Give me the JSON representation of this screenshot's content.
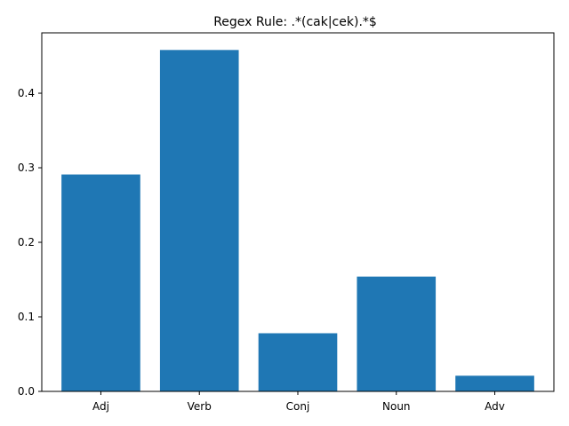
{
  "chart_data": {
    "type": "bar",
    "title": "Regex Rule: .*(cak|cek).*$",
    "xlabel": "",
    "ylabel": "",
    "categories": [
      "Adj",
      "Verb",
      "Conj",
      "Noun",
      "Adv"
    ],
    "values": [
      0.291,
      0.458,
      0.078,
      0.154,
      0.021
    ],
    "ylim": [
      0,
      0.481
    ],
    "yticks": [
      "0.0",
      "0.1",
      "0.2",
      "0.3",
      "0.4"
    ],
    "grid": false,
    "bar_color": "#1f77b4"
  }
}
